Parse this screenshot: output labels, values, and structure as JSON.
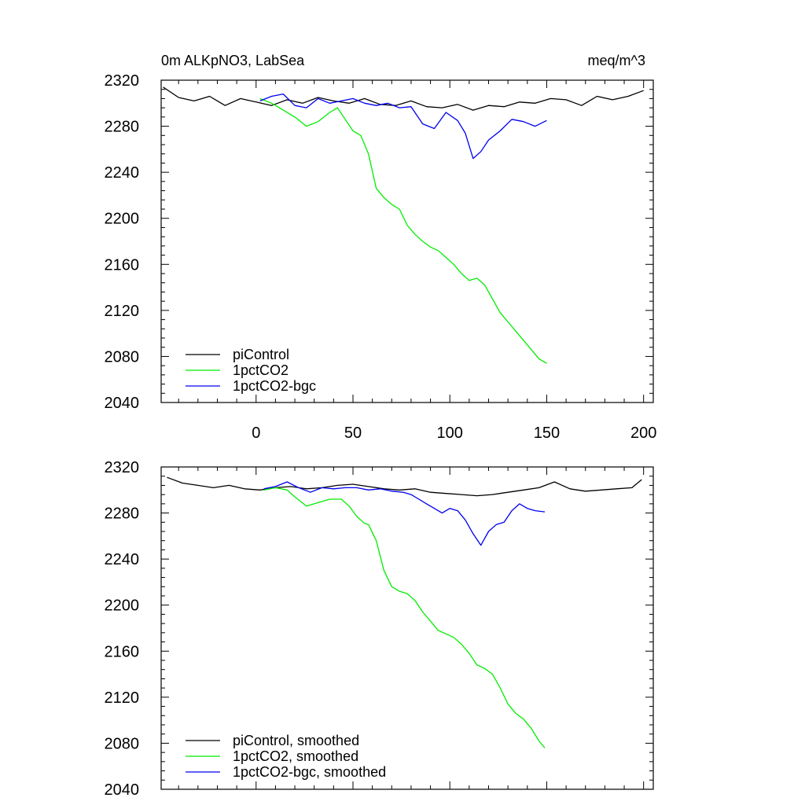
{
  "chart_data": [
    {
      "type": "line",
      "title": "0m ALKpNO3, LabSea",
      "units": "meq/m^3",
      "xlim": [
        -49,
        205
      ],
      "ylim": [
        2040,
        2320
      ],
      "xticks": [
        0,
        50,
        100,
        150,
        200
      ],
      "xticklabels": [
        "0",
        "50",
        "100",
        "150",
        "200"
      ],
      "yticks": [
        2040,
        2080,
        2120,
        2160,
        2200,
        2240,
        2280,
        2320
      ],
      "yticklabels": [
        "2040",
        "2080",
        "2120",
        "2160",
        "2200",
        "2240",
        "2280",
        "2320"
      ],
      "legend_location": "bottom-left",
      "series": [
        {
          "name": "piControl",
          "color": "#000000",
          "x": [
            -48,
            -40,
            -32,
            -24,
            -16,
            -8,
            0,
            8,
            16,
            24,
            32,
            40,
            48,
            56,
            64,
            72,
            80,
            88,
            96,
            104,
            112,
            120,
            128,
            136,
            144,
            152,
            160,
            168,
            176,
            184,
            192,
            200
          ],
          "y": [
            2314,
            2305,
            2302,
            2306,
            2298,
            2304,
            2301,
            2298,
            2303,
            2300,
            2305,
            2302,
            2300,
            2304,
            2299,
            2298,
            2302,
            2297,
            2296,
            2299,
            2294,
            2298,
            2297,
            2301,
            2300,
            2304,
            2303,
            2298,
            2306,
            2303,
            2306,
            2311
          ]
        },
        {
          "name": "1pctCO2",
          "color": "#00ee00",
          "x": [
            2,
            8,
            14,
            20,
            26,
            32,
            38,
            42,
            46,
            50,
            54,
            58,
            62,
            66,
            70,
            74,
            78,
            82,
            86,
            90,
            94,
            98,
            102,
            106,
            110,
            114,
            118,
            122,
            126,
            130,
            134,
            138,
            142,
            146,
            150
          ],
          "y": [
            2304,
            2300,
            2294,
            2288,
            2280,
            2284,
            2292,
            2296,
            2286,
            2276,
            2272,
            2256,
            2226,
            2218,
            2212,
            2208,
            2194,
            2186,
            2180,
            2175,
            2172,
            2166,
            2160,
            2152,
            2146,
            2148,
            2142,
            2130,
            2118,
            2110,
            2102,
            2094,
            2086,
            2078,
            2074
          ]
        },
        {
          "name": "1pctCO2-bgc",
          "color": "#0000ee",
          "x": [
            2,
            8,
            14,
            20,
            26,
            32,
            38,
            44,
            50,
            56,
            62,
            68,
            74,
            80,
            86,
            92,
            98,
            104,
            108,
            112,
            116,
            120,
            126,
            132,
            138,
            144,
            150
          ],
          "y": [
            2302,
            2306,
            2308,
            2298,
            2296,
            2304,
            2300,
            2302,
            2304,
            2300,
            2298,
            2300,
            2296,
            2297,
            2282,
            2278,
            2292,
            2285,
            2274,
            2252,
            2258,
            2268,
            2276,
            2286,
            2284,
            2280,
            2285
          ]
        }
      ]
    },
    {
      "type": "line",
      "title": "",
      "xlim": [
        -49,
        205
      ],
      "ylim": [
        2040,
        2320
      ],
      "xticks": [
        0,
        50,
        100,
        150,
        200
      ],
      "yticks": [
        2040,
        2080,
        2120,
        2160,
        2200,
        2240,
        2280,
        2320
      ],
      "yticklabels": [
        "2040",
        "2080",
        "2120",
        "2160",
        "2200",
        "2240",
        "2280",
        "2320"
      ],
      "legend_location": "bottom-left",
      "series": [
        {
          "name": "piControl, smoothed",
          "color": "#000000",
          "x": [
            -46,
            -38,
            -30,
            -22,
            -14,
            -6,
            2,
            10,
            18,
            26,
            34,
            42,
            50,
            58,
            66,
            74,
            82,
            90,
            98,
            106,
            114,
            122,
            130,
            138,
            146,
            154,
            162,
            170,
            178,
            186,
            194,
            199
          ],
          "y": [
            2311,
            2306,
            2304,
            2302,
            2304,
            2301,
            2300,
            2302,
            2303,
            2301,
            2302,
            2304,
            2305,
            2303,
            2301,
            2300,
            2301,
            2298,
            2297,
            2296,
            2295,
            2296,
            2298,
            2300,
            2302,
            2307,
            2301,
            2299,
            2300,
            2301,
            2302,
            2309
          ]
        },
        {
          "name": "1pctCO2, smoothed",
          "color": "#00ee00",
          "x": [
            4,
            10,
            16,
            20,
            26,
            32,
            38,
            44,
            48,
            52,
            56,
            58,
            62,
            66,
            70,
            74,
            78,
            82,
            86,
            90,
            94,
            98,
            102,
            106,
            110,
            114,
            118,
            122,
            126,
            130,
            134,
            138,
            142,
            146,
            149
          ],
          "y": [
            2300,
            2302,
            2300,
            2294,
            2286,
            2289,
            2292,
            2292,
            2286,
            2277,
            2271,
            2270,
            2256,
            2230,
            2216,
            2212,
            2210,
            2204,
            2194,
            2186,
            2178,
            2175,
            2172,
            2166,
            2158,
            2148,
            2145,
            2140,
            2128,
            2114,
            2106,
            2101,
            2093,
            2082,
            2076
          ]
        },
        {
          "name": "1pctCO2-bgc, smoothed",
          "color": "#0000ee",
          "x": [
            4,
            10,
            16,
            22,
            28,
            34,
            40,
            46,
            52,
            58,
            64,
            70,
            76,
            80,
            84,
            88,
            92,
            96,
            100,
            104,
            108,
            112,
            116,
            120,
            124,
            128,
            132,
            136,
            140,
            144,
            149
          ],
          "y": [
            2301,
            2303,
            2307,
            2302,
            2298,
            2302,
            2301,
            2302,
            2302,
            2300,
            2301,
            2299,
            2298,
            2296,
            2292,
            2288,
            2284,
            2280,
            2284,
            2282,
            2274,
            2262,
            2252,
            2264,
            2270,
            2272,
            2282,
            2288,
            2284,
            2282,
            2281
          ]
        }
      ]
    }
  ]
}
